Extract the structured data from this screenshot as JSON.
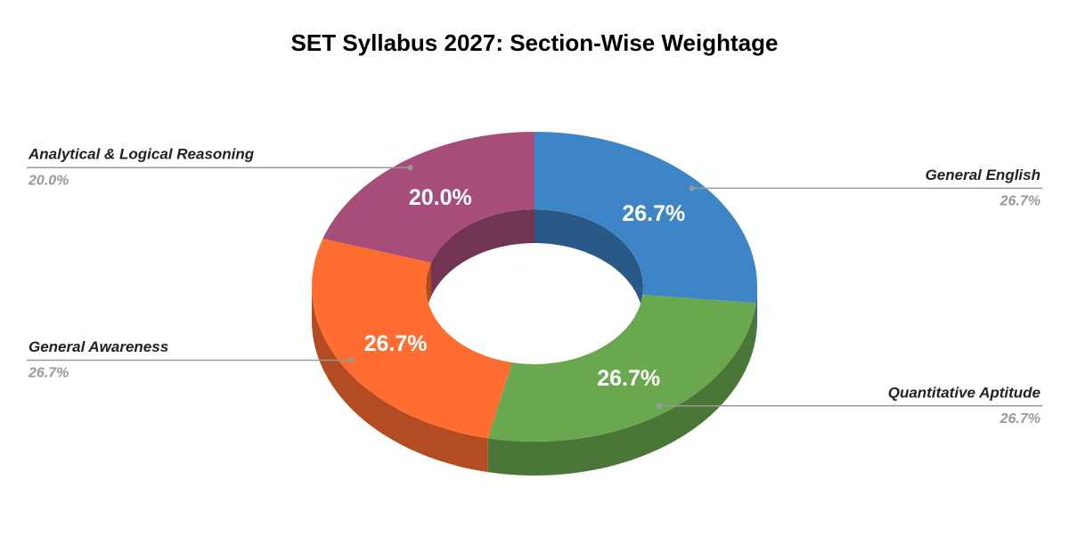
{
  "chart_data": {
    "type": "donut",
    "title": "SET Syllabus 2027: Section-Wise Weightage",
    "categories": [
      "General English",
      "Quantitative Aptitude",
      "General Awareness",
      "Analytical & Logical Reasoning"
    ],
    "values": [
      26.7,
      26.7,
      26.7,
      20.0
    ],
    "value_labels": [
      "26.7%",
      "26.7%",
      "26.7%",
      "20.0%"
    ],
    "colors": [
      "#3d85c6",
      "#6aa84f",
      "#ff6d31",
      "#a64d79"
    ]
  }
}
